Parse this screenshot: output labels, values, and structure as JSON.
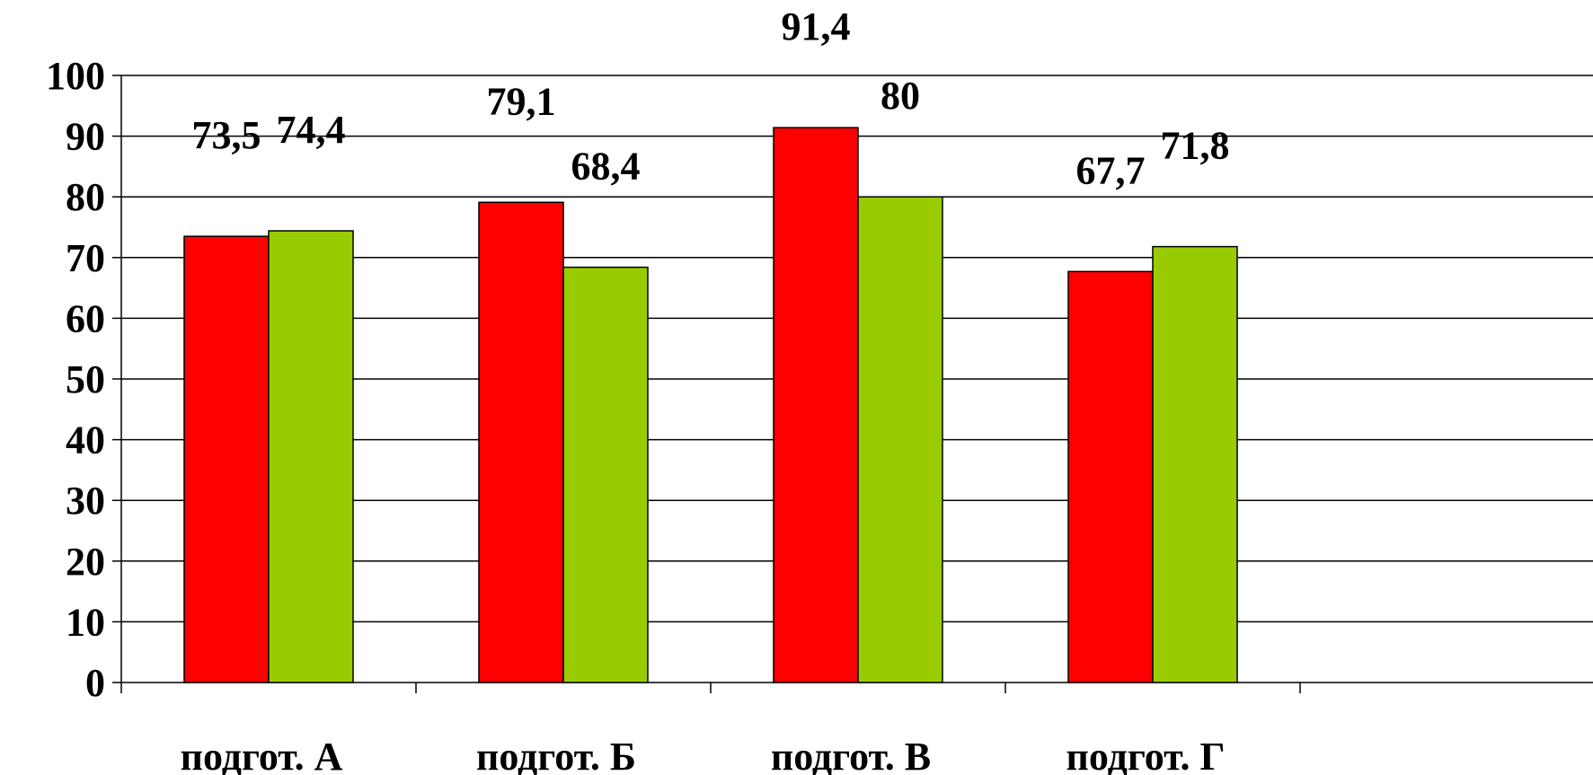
{
  "chart_data": {
    "type": "bar",
    "title": "",
    "xlabel": "",
    "ylabel": "",
    "ylim": [
      0,
      100
    ],
    "yticks": [
      0,
      10,
      20,
      30,
      40,
      50,
      60,
      70,
      80,
      90,
      100
    ],
    "grid": true,
    "legend": "none",
    "categories": [
      "подгот. А",
      "подгот. Б",
      "подгот. В",
      "подгот. Г"
    ],
    "series": [
      {
        "color": "#ff0000",
        "values": [
          73.5,
          79.1,
          91.4,
          67.7
        ],
        "labels": [
          "73,5",
          "79,1",
          "91,4",
          "67,7"
        ]
      },
      {
        "color": "#99cc00",
        "values": [
          74.4,
          68.4,
          80,
          71.8
        ],
        "labels": [
          "74,4",
          "68,4",
          "80",
          "71,8"
        ]
      }
    ]
  }
}
